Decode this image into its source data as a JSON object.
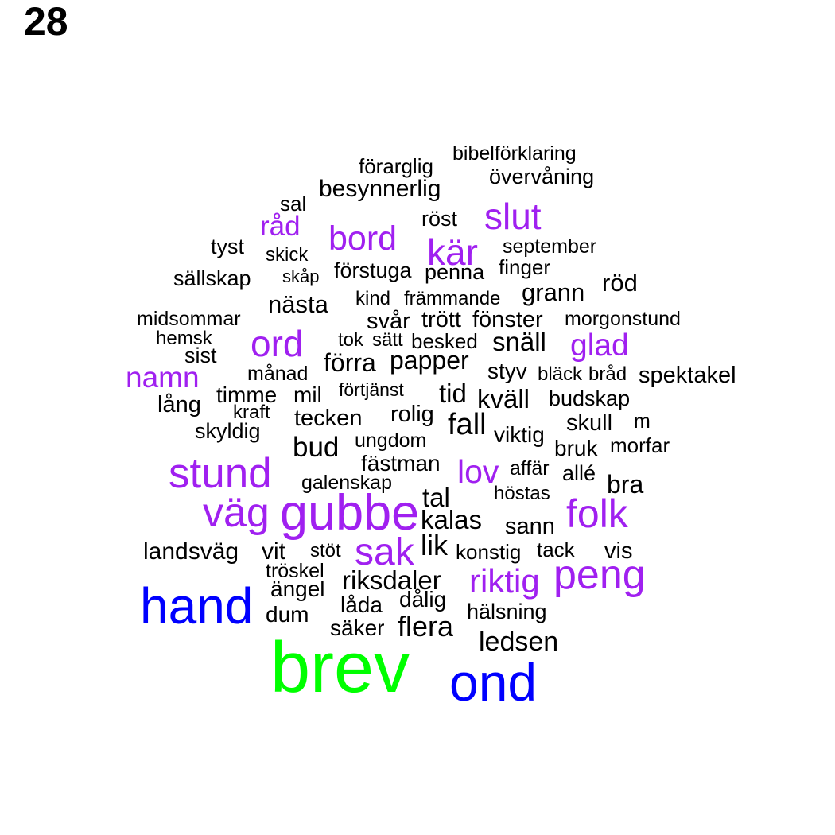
{
  "page_number": "28",
  "colors": {
    "black": "#000000",
    "purple": "#a020f0",
    "blue": "#0000ff",
    "green": "#00ff00"
  },
  "words": [
    "bibelförklaring",
    "förarglig",
    "övervåning",
    "besynnerlig",
    "sal",
    "slut",
    "röst",
    "råd",
    "bord",
    "tyst",
    "kär",
    "september",
    "skick",
    "finger",
    "sällskap",
    "skåp",
    "förstuga",
    "penna",
    "röd",
    "grann",
    "nästa",
    "kind",
    "främmande",
    "midsommar",
    "svår",
    "trött",
    "fönster",
    "morgonstund",
    "hemsk",
    "ord",
    "tok",
    "sätt",
    "besked",
    "snäll",
    "glad",
    "sist",
    "förra",
    "papper",
    "namn",
    "månad",
    "styv",
    "bläck",
    "bråd",
    "spektakel",
    "timme",
    "mil",
    "förtjänst",
    "tid",
    "kväll",
    "budskap",
    "lång",
    "kraft",
    "rolig",
    "tecken",
    "fall",
    "skull",
    "m",
    "skyldig",
    "viktig",
    "ungdom",
    "bud",
    "bruk",
    "morfar",
    "fästman",
    "lov",
    "affär",
    "allé",
    "stund",
    "galenskap",
    "bra",
    "tal",
    "höstas",
    "väg",
    "gubbe",
    "folk",
    "kalas",
    "sann",
    "lik",
    "landsväg",
    "vit",
    "stöt",
    "sak",
    "konstig",
    "tack",
    "vis",
    "tröskel",
    "peng",
    "riksdaler",
    "riktig",
    "ängel",
    "hand",
    "dålig",
    "låda",
    "hälsning",
    "dum",
    "säker",
    "flera",
    "ledsen",
    "brev",
    "ond"
  ]
}
